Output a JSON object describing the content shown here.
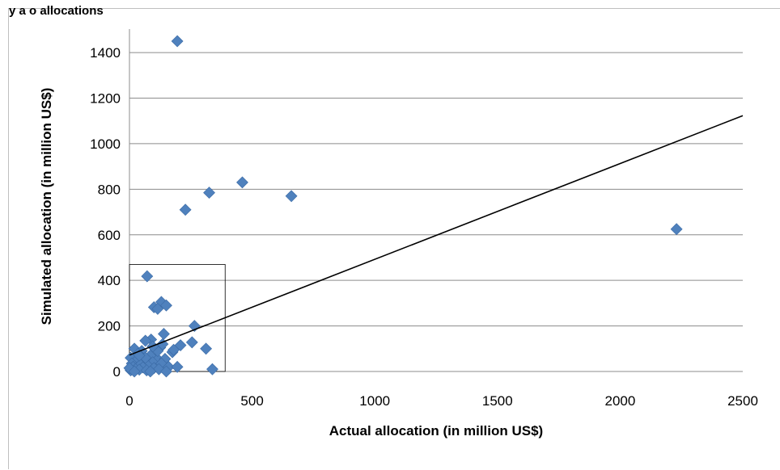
{
  "header_fragment": "y a o allocations",
  "chart_data": {
    "type": "scatter",
    "xlabel": "Actual allocation (in million US$)",
    "ylabel": "Simulated allocation (in million US$)",
    "xlim": [
      0,
      2500
    ],
    "ylim": [
      0,
      1400
    ],
    "xticks": [
      0,
      500,
      1000,
      1500,
      2000,
      2500
    ],
    "yticks": [
      0,
      200,
      400,
      600,
      800,
      1000,
      1200,
      1400
    ],
    "grid": {
      "horizontal": true,
      "vertical": false
    },
    "marker": "diamond",
    "marker_color": "#4f81bd",
    "trendline": {
      "type": "linear",
      "color": "#000000",
      "points": [
        [
          0,
          72
        ],
        [
          2500,
          1123
        ]
      ]
    },
    "highlight_box": {
      "x": [
        0,
        390
      ],
      "y": [
        0,
        470
      ]
    },
    "series": [
      {
        "points": [
          [
            195,
            1450
          ],
          [
            460,
            830
          ],
          [
            325,
            785
          ],
          [
            660,
            770
          ],
          [
            228,
            710
          ],
          [
            2230,
            625
          ],
          [
            72,
            418
          ],
          [
            130,
            305
          ],
          [
            150,
            290
          ],
          [
            100,
            282
          ],
          [
            115,
            275
          ],
          [
            265,
            200
          ],
          [
            140,
            165
          ],
          [
            88,
            140
          ],
          [
            65,
            135
          ],
          [
            255,
            128
          ],
          [
            312,
            100
          ],
          [
            208,
            115
          ],
          [
            20,
            100
          ],
          [
            125,
            105
          ],
          [
            50,
            90
          ],
          [
            175,
            85
          ],
          [
            35,
            78
          ],
          [
            5,
            60
          ],
          [
            110,
            60
          ],
          [
            145,
            55
          ],
          [
            85,
            70
          ],
          [
            30,
            50
          ],
          [
            60,
            45
          ],
          [
            95,
            40
          ],
          [
            10,
            35
          ],
          [
            45,
            30
          ],
          [
            130,
            35
          ],
          [
            75,
            25
          ],
          [
            15,
            20
          ],
          [
            55,
            18
          ],
          [
            100,
            15
          ],
          [
            160,
            20
          ],
          [
            195,
            20
          ],
          [
            25,
            10
          ],
          [
            40,
            8
          ],
          [
            70,
            5
          ],
          [
            120,
            10
          ],
          [
            5,
            5
          ],
          [
            338,
            10
          ],
          [
            0,
            15
          ],
          [
            20,
            0
          ],
          [
            85,
            0
          ],
          [
            150,
            0
          ],
          [
            65,
            60
          ],
          [
            40,
            70
          ],
          [
            115,
            90
          ],
          [
            180,
            95
          ],
          [
            95,
            110
          ],
          [
            135,
            120
          ]
        ]
      }
    ]
  }
}
